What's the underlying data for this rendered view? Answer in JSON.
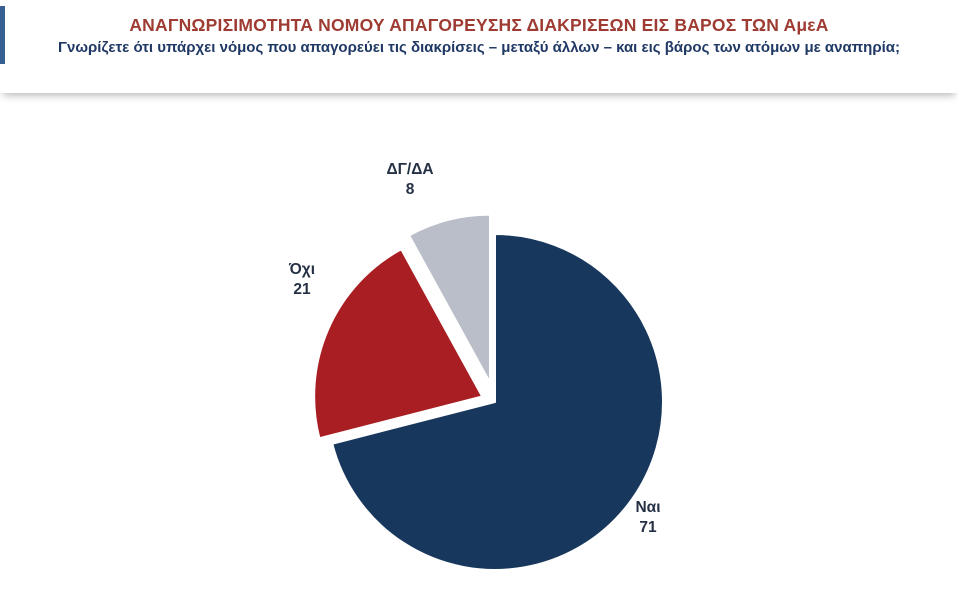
{
  "header": {
    "title": "ΑΝΑΓΝΩΡΙΣΙΜΟΤΗΤΑ ΝΟΜΟΥ ΑΠΑΓΟΡΕΥΣΗΣ ΔΙΑΚΡΙΣΕΩΝ ΕΙΣ ΒΑΡΟΣ ΤΩΝ ΑμεΑ",
    "subtitle": "Γνωρίζετε ότι υπάρχει νόμος που απαγορεύει τις διακρίσεις – μεταξύ άλλων – και εις βάρος των ατόμων με αναπηρία;",
    "title_color": "#9E3B32",
    "subtitle_color": "#1F3864"
  },
  "chart_data": {
    "type": "pie",
    "title": "ΑΝΑΓΝΩΡΙΣΙΜΟΤΗΤΑ ΝΟΜΟΥ ΑΠΑΓΟΡΕΥΣΗΣ ΔΙΑΚΡΙΣΕΩΝ ΕΙΣ ΒΑΡΟΣ ΤΩΝ ΑμεΑ",
    "subtitle": "Γνωρίζετε ότι υπάρχει νόμος που απαγορεύει τις διακρίσεις – μεταξύ άλλων – και εις βάρος των ατόμων με αναπηρία;",
    "categories": [
      "Ναι",
      "Όχι",
      "ΔΓ/ΔΑ"
    ],
    "values": [
      71,
      21,
      8
    ],
    "colors": [
      "#17375D",
      "#A91E22",
      "#B9BEC8"
    ],
    "start_angle_deg": 0,
    "direction": "clockwise",
    "exploded_slices": [
      "Όχι",
      "ΔΓ/ΔΑ"
    ],
    "legend": "none",
    "data_labels": "category name and value, outside slices"
  }
}
